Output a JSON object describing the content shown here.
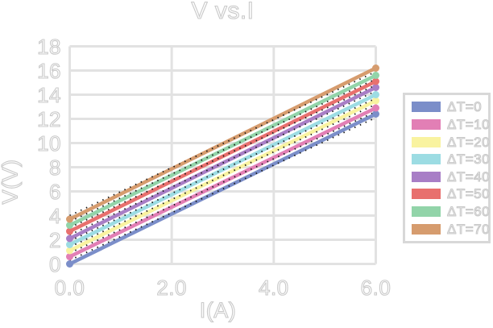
{
  "title": "V vs.I",
  "chart_data": {
    "type": "line",
    "title": "V vs.I",
    "xlabel": "I(A)",
    "ylabel": "V(V)",
    "xlim": [
      0,
      6
    ],
    "ylim": [
      0,
      18
    ],
    "grid": true,
    "legend_position": "right",
    "xticks": {
      "values": [
        0,
        2,
        4,
        6
      ],
      "labels": [
        "0.0",
        "2.0",
        "4.0",
        "6.0"
      ]
    },
    "yticks": {
      "values": [
        0,
        2,
        4,
        6,
        8,
        10,
        12,
        14,
        16,
        18
      ],
      "labels": [
        "0",
        "2",
        "4",
        "6",
        "8",
        "10",
        "12",
        "14",
        "16",
        "18"
      ]
    },
    "x": [
      0,
      6
    ],
    "series": [
      {
        "name": "ΔT=0",
        "color": "#7b8ec9",
        "values": [
          0.0,
          12.4
        ]
      },
      {
        "name": "ΔT=10",
        "color": "#e27fb5",
        "values": [
          0.6,
          12.9
        ]
      },
      {
        "name": "ΔT=20",
        "color": "#f9f3a0",
        "values": [
          1.1,
          13.5
        ]
      },
      {
        "name": "ΔT=30",
        "color": "#9cdce3",
        "values": [
          1.6,
          14.0
        ]
      },
      {
        "name": "ΔT=40",
        "color": "#a87ec6",
        "values": [
          2.1,
          14.6
        ]
      },
      {
        "name": "ΔT=50",
        "color": "#e8706e",
        "values": [
          2.7,
          15.1
        ]
      },
      {
        "name": "ΔT=60",
        "color": "#92d4a9",
        "values": [
          3.2,
          15.6
        ]
      },
      {
        "name": "ΔT=70",
        "color": "#d69c6e",
        "values": [
          3.7,
          16.2
        ]
      }
    ],
    "fit_lines": {
      "style": "dotted",
      "color": "#1a1a1a"
    }
  },
  "styles": {
    "background": "#ffffff",
    "grid_color": "#e2e2e2",
    "text_outline_color": "#c9c9c9",
    "legend_border_color": "#d8d8d8"
  }
}
